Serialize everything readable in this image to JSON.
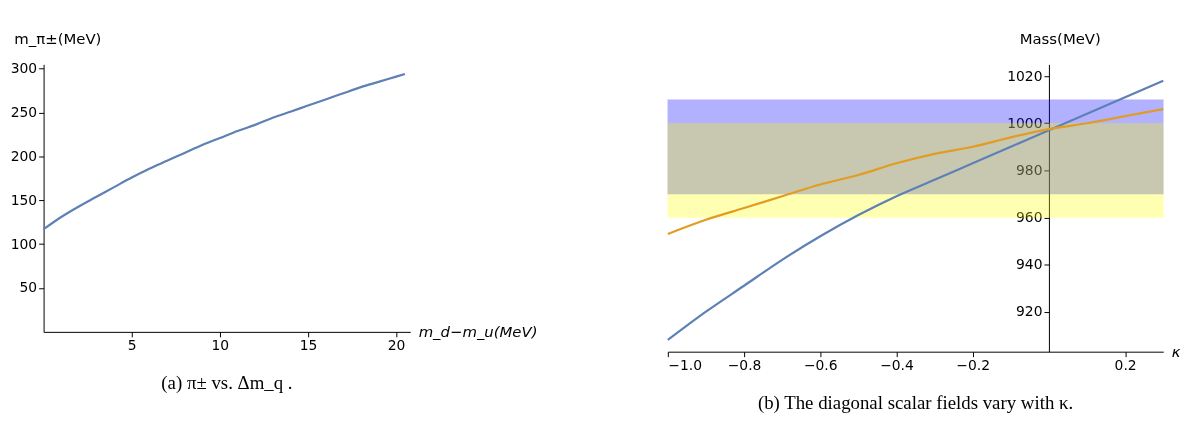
{
  "chart_data": [
    {
      "type": "line",
      "title": "(a) π± vs. Δm_q .",
      "xlabel": "m_d−m_u(MeV)",
      "ylabel": "m_π±(MeV)",
      "xlim": [
        0,
        20.8
      ],
      "ylim": [
        0,
        305
      ],
      "xticks": [
        5,
        10,
        15,
        20
      ],
      "yticks": [
        50,
        100,
        150,
        200,
        250,
        300
      ],
      "grid": false,
      "series": [
        {
          "color": "#5e81b5",
          "x": [
            0,
            1,
            2,
            3,
            4,
            5,
            6,
            7,
            8,
            9,
            10,
            11,
            12,
            13,
            14,
            15,
            16,
            17,
            18,
            19,
            20,
            20.5
          ],
          "values": [
            117,
            131,
            143,
            154,
            165,
            176,
            186,
            195,
            204,
            213,
            221,
            229,
            236,
            244,
            251,
            258,
            265,
            272,
            279,
            285,
            291,
            294
          ]
        }
      ]
    },
    {
      "type": "line",
      "title": "(b) The diagonal scalar fields vary with κ.",
      "xlabel": "κ",
      "ylabel": "Mass(MeV)",
      "xlim": [
        -1,
        0.3
      ],
      "ylim": [
        903,
        1025
      ],
      "xticks": [
        {
          "value": -1,
          "label": "−1.0"
        },
        {
          "value": -0.8,
          "label": "−0.8"
        },
        {
          "value": -0.6,
          "label": "−0.6"
        },
        {
          "value": -0.4,
          "label": "−0.4"
        },
        {
          "value": -0.2,
          "label": "−0.2"
        },
        0.2
      ],
      "yticks": [
        920,
        940,
        960,
        980,
        1000,
        1020
      ],
      "grid": false,
      "bands": [
        {
          "axis": "y",
          "from": 970,
          "to": 1010,
          "color": "#0000ff"
        },
        {
          "axis": "y",
          "from": 960,
          "to": 1000,
          "color": "#ffff00"
        }
      ],
      "series": [
        {
          "color": "#5e81b5",
          "x": [
            -1,
            -0.9,
            -0.8,
            -0.7,
            -0.6,
            -0.5,
            -0.4,
            -0.3,
            -0.2,
            -0.1,
            0,
            0.1,
            0.2,
            0.3
          ],
          "values": [
            908,
            920,
            931,
            942,
            952,
            961,
            969,
            976,
            983,
            990,
            997,
            1004,
            1011,
            1018
          ]
        },
        {
          "color": "#e19c24",
          "x": [
            -1,
            -0.9,
            -0.8,
            -0.7,
            -0.6,
            -0.5,
            -0.4,
            -0.3,
            -0.2,
            -0.1,
            0,
            0.1,
            0.2,
            0.3
          ],
          "values": [
            953,
            959,
            964,
            969,
            974,
            978,
            983,
            987,
            990,
            994,
            997.5,
            1000,
            1003,
            1006
          ]
        }
      ]
    }
  ]
}
